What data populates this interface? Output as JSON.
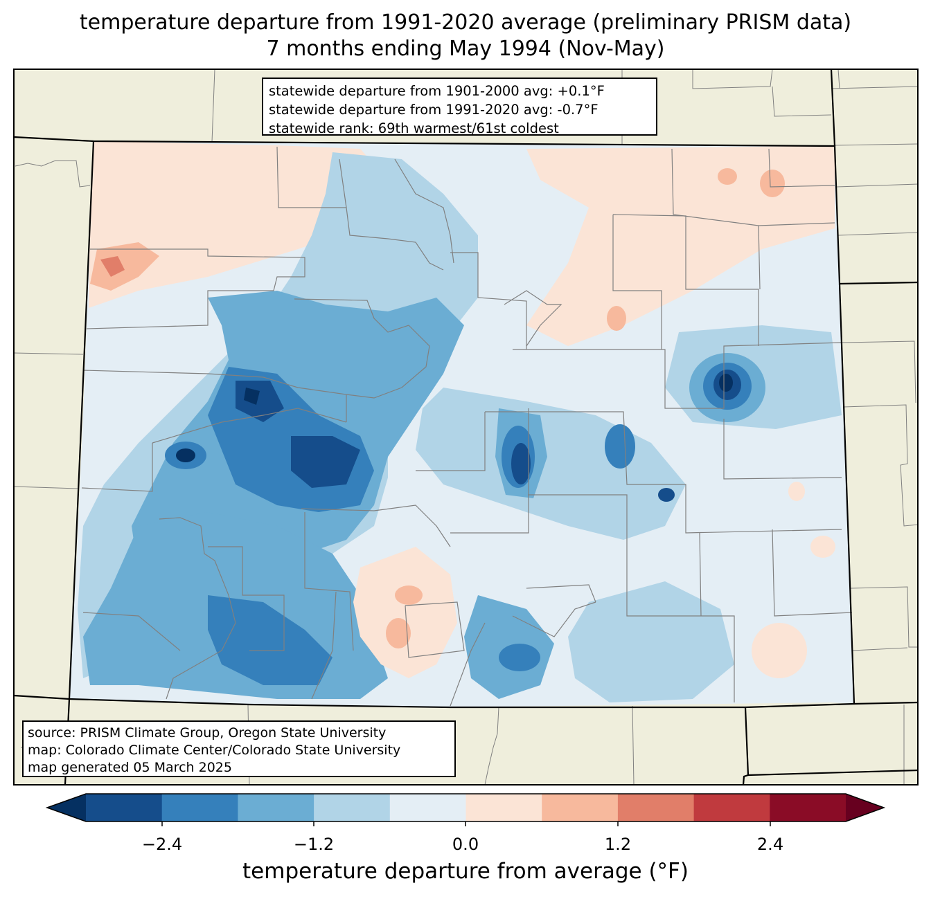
{
  "title": {
    "line1": "temperature departure from 1991-2020 average (preliminary PRISM data)",
    "line2": "7 months ending May 1994 (Nov-May)"
  },
  "stats_box": {
    "line1": "statewide departure from 1901-2000 avg: +0.1°F",
    "line2": "statewide departure from 1991-2020 avg: -0.7°F",
    "line3": "statewide rank: 69th warmest/61st coldest"
  },
  "credits_box": {
    "line1": "source: PRISM Climate Group, Oregon State University",
    "line2": "map: Colorado Climate Center/Colorado State University",
    "line3": "map generated 05 March 2025"
  },
  "colorbar": {
    "label": "temperature departure from average (°F)",
    "ticks": [
      "−2.4",
      "−1.2",
      "0.0",
      "1.2",
      "2.4"
    ],
    "bins": [
      {
        "range": "< -3.0",
        "color": "#053061"
      },
      {
        "range": "-3.0 to -2.4",
        "color": "#154d8b"
      },
      {
        "range": "-2.4 to -1.8",
        "color": "#3580bb"
      },
      {
        "range": "-1.8 to -1.2",
        "color": "#6badd3"
      },
      {
        "range": "-1.2 to -0.6",
        "color": "#b1d4e7"
      },
      {
        "range": "-0.6 to 0.0",
        "color": "#e4eef5"
      },
      {
        "range": "0.0 to 0.6",
        "color": "#fbe4d6"
      },
      {
        "range": "0.6 to 1.2",
        "color": "#f7b99d"
      },
      {
        "range": "1.2 to 1.8",
        "color": "#e17e69"
      },
      {
        "range": "1.8 to 2.4",
        "color": "#c03a3e"
      },
      {
        "range": "2.4 to 3.0",
        "color": "#8a0c26"
      },
      {
        "range": "> 3.0",
        "color": "#67001f"
      }
    ]
  },
  "colors": {
    "land": "#efeedc",
    "county_lines": "#808080",
    "state_lines": "#000000"
  },
  "map": {
    "region": "Colorado",
    "statewide_departure_1901_2000": 0.1,
    "statewide_departure_1991_2020": -0.7
  }
}
